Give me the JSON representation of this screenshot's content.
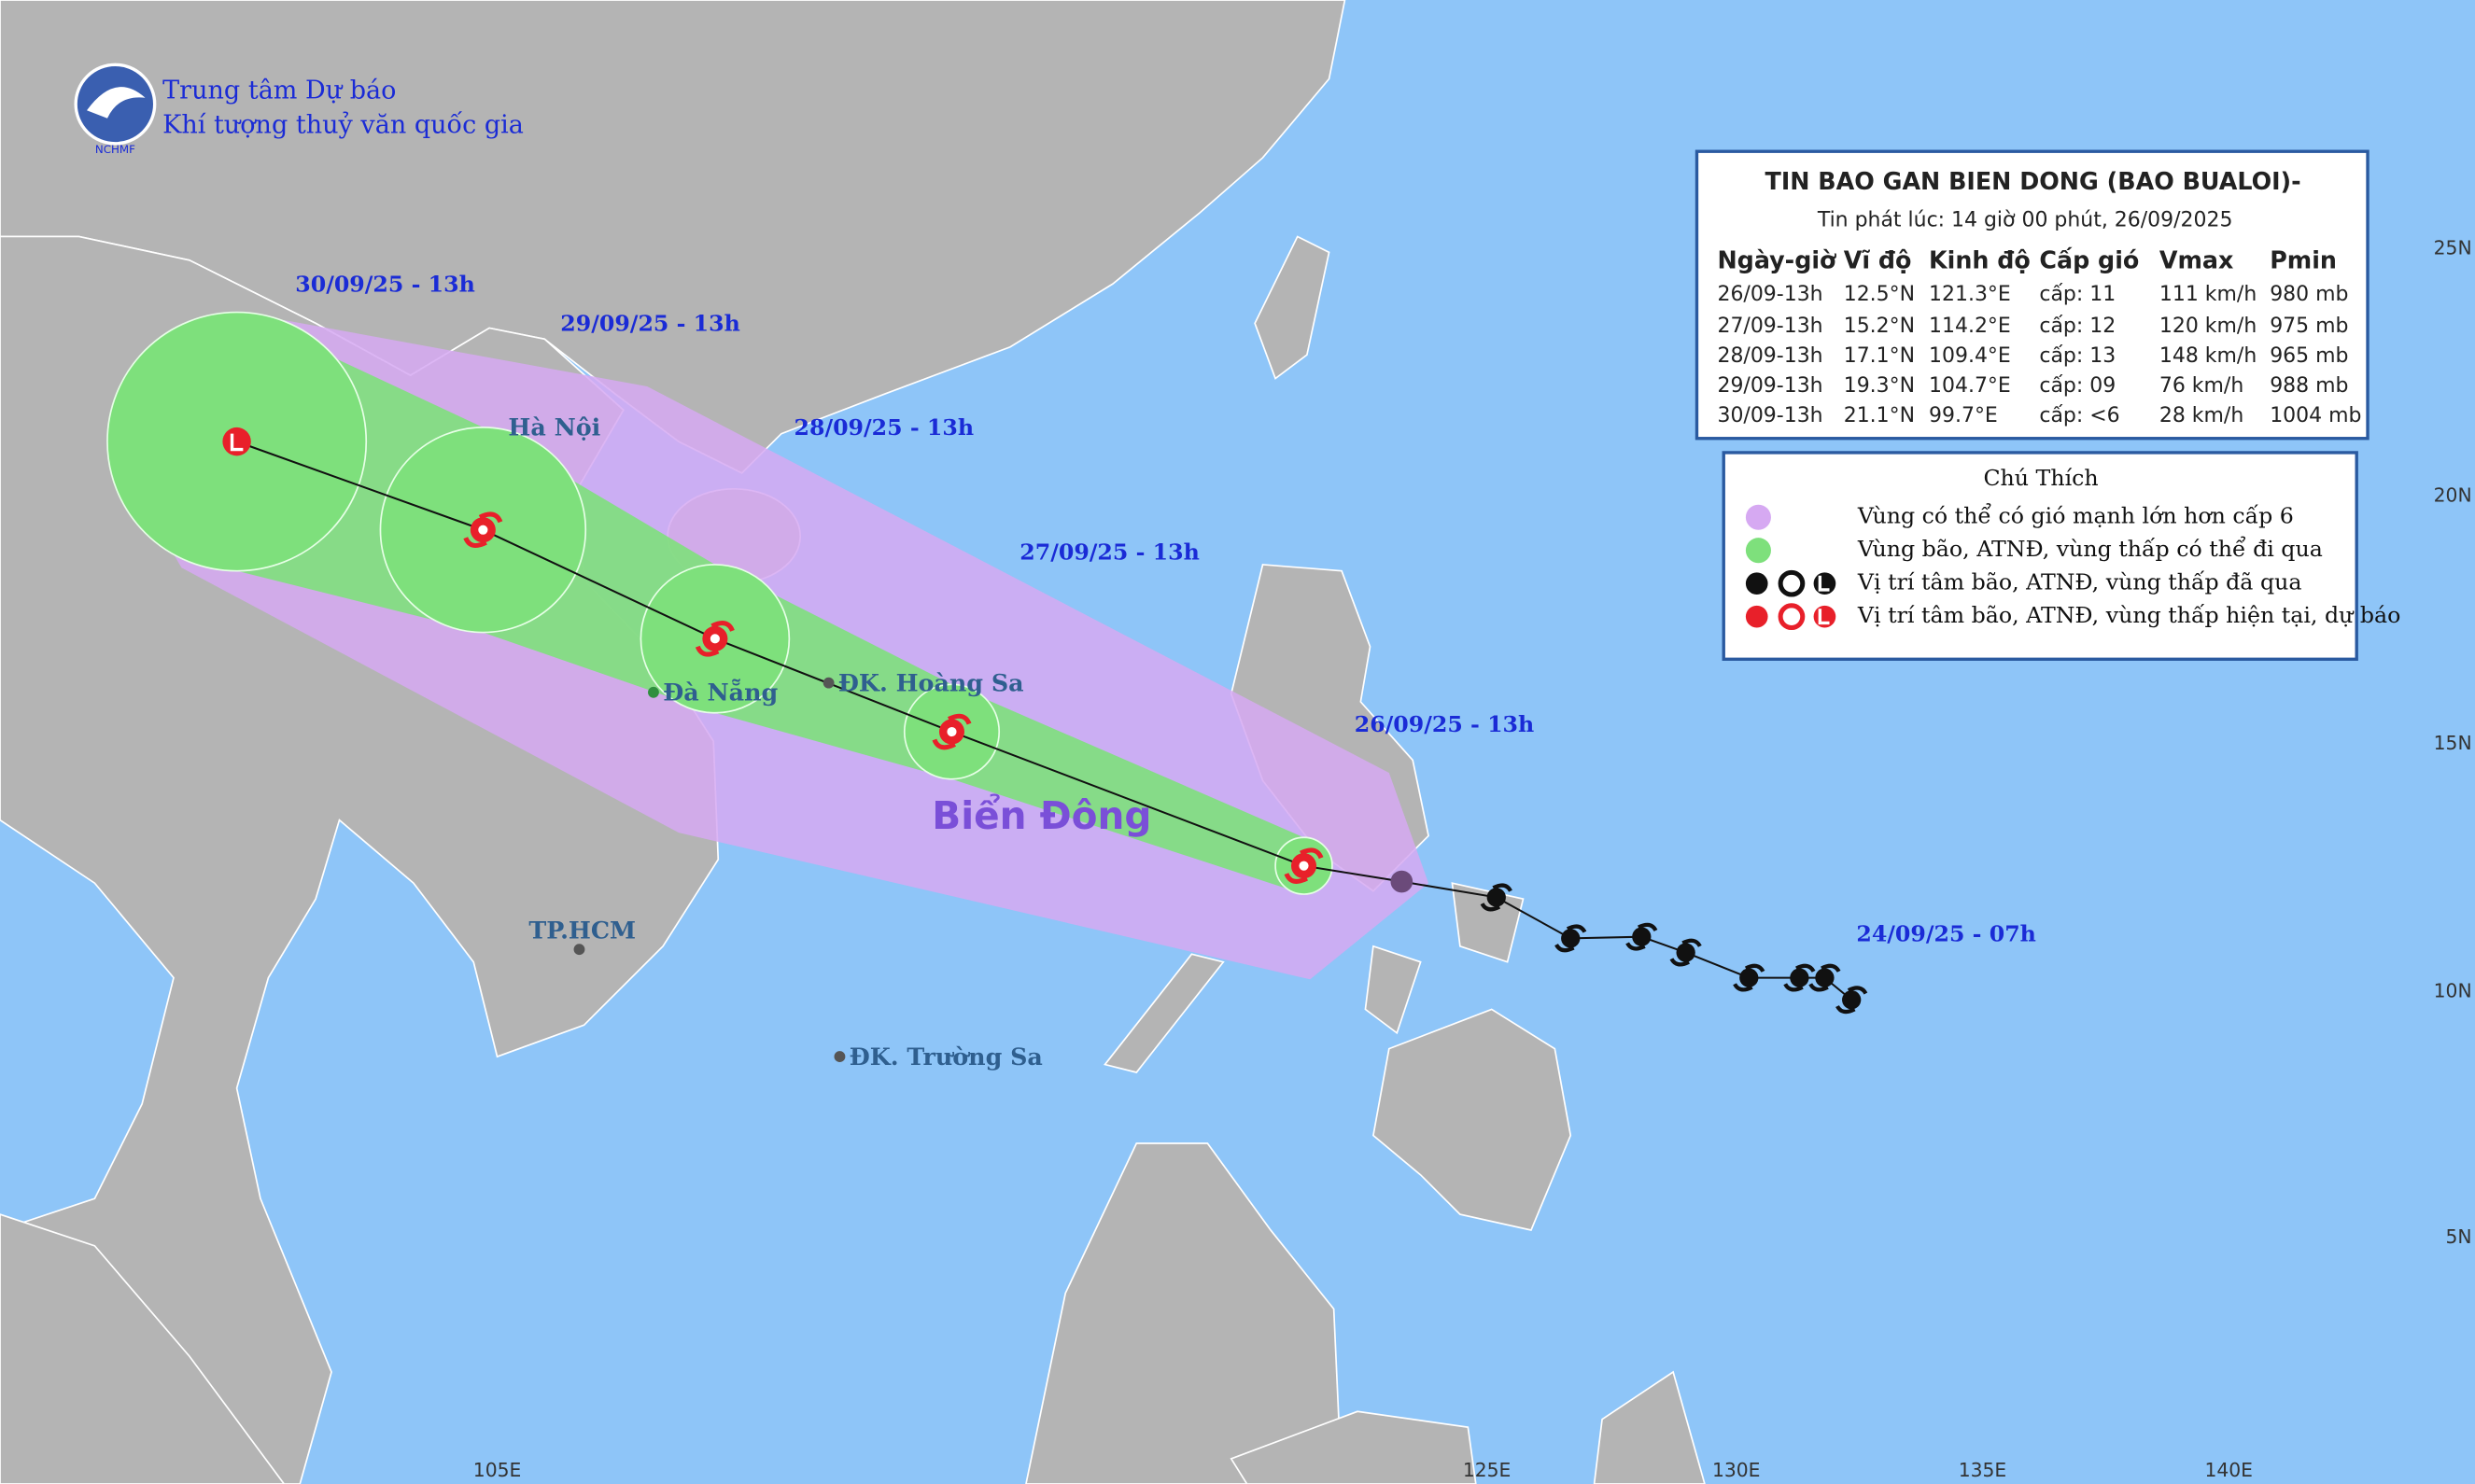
{
  "header": {
    "logo_caption": "NCHMF",
    "org_line1": "Trung tâm Dự báo",
    "org_line2": "Khí tượng thuỷ văn quốc gia"
  },
  "bulletin": {
    "title": "TIN BAO GAN BIEN DONG (BAO BUALOI)-",
    "issued": "Tin phát lúc: 14 giờ 00 phút, 26/09/2025",
    "columns": [
      "Ngày-giờ",
      "Vĩ độ",
      "Kinh độ",
      "Cấp gió",
      "Vmax",
      "Pmin"
    ],
    "rows": [
      [
        "26/09-13h",
        "12.5°N",
        "121.3°E",
        "cấp: 11",
        "111 km/h",
        "980 mb"
      ],
      [
        "27/09-13h",
        "15.2°N",
        "114.2°E",
        "cấp: 12",
        "120 km/h",
        "975 mb"
      ],
      [
        "28/09-13h",
        "17.1°N",
        "109.4°E",
        "cấp: 13",
        "148 km/h",
        "965 mb"
      ],
      [
        "29/09-13h",
        "19.3°N",
        "104.7°E",
        "cấp: 09",
        "76 km/h",
        "988 mb"
      ],
      [
        "30/09-13h",
        "21.1°N",
        "99.7°E",
        "cấp: <6",
        "28 km/h",
        "1004 mb"
      ]
    ]
  },
  "legend": {
    "title": "Chú Thích",
    "items": [
      "Vùng có thể có gió mạnh lớn hơn cấp 6",
      "Vùng bão, ATNĐ, vùng thấp có thể đi qua",
      "Vị trí tâm bão, ATNĐ, vùng thấp đã qua",
      "Vị trí tâm bão, ATNĐ, vùng thấp hiện tại, dự báo"
    ]
  },
  "map": {
    "time_labels": [
      "30/09/25 - 13h",
      "29/09/25 - 13h",
      "28/09/25 - 13h",
      "27/09/25 - 13h",
      "26/09/25 - 13h",
      "24/09/25 - 07h"
    ],
    "place_labels": [
      "Hà Nội",
      "Đà Nẵng",
      "ĐK. Hoàng Sa",
      "TP.HCM",
      "ĐK. Trường Sa"
    ],
    "sea_label": "Biển Đông",
    "lon_labels": [
      "105E",
      "125E",
      "130E",
      "135E",
      "140E"
    ],
    "lat_labels": [
      "25N",
      "20N",
      "15N",
      "10N",
      "5N"
    ]
  }
}
